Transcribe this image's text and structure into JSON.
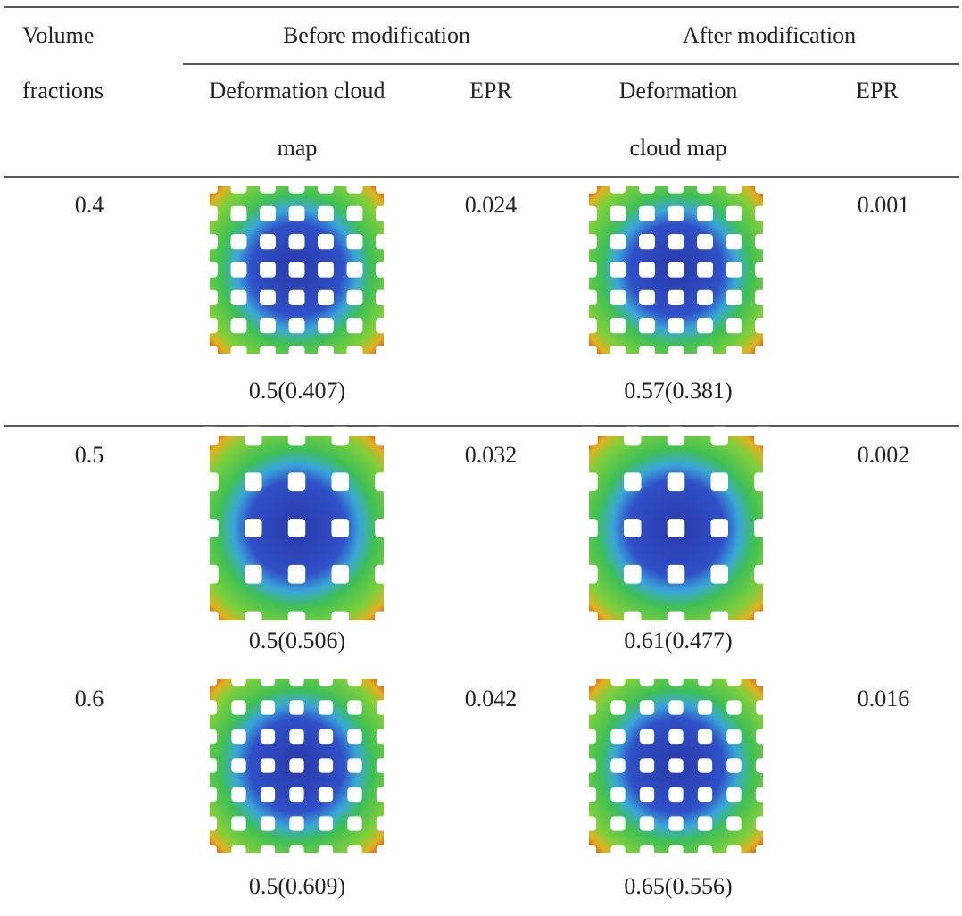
{
  "header": {
    "volume": "Volume",
    "fractions": "fractions",
    "before": "Before modification",
    "after": "After modification",
    "before_map": [
      "Deformation cloud",
      "map"
    ],
    "before_epr": "EPR",
    "after_map": [
      "Deformation",
      "cloud map"
    ],
    "after_epr": "EPR"
  },
  "rows": [
    {
      "fraction": "0.4",
      "before_epr": "0.024",
      "before_caption": "0.5(0.407)",
      "after_epr": "0.001",
      "after_caption": "0.57(0.381)"
    },
    {
      "fraction": "0.5",
      "before_epr": "0.032",
      "before_caption": "0.5(0.506)",
      "after_epr": "0.002",
      "after_caption": "0.61(0.477)"
    },
    {
      "fraction": "0.6",
      "before_epr": "0.042",
      "before_caption": "0.5(0.609)",
      "after_epr": "0.016",
      "after_caption": "0.65(0.556)"
    }
  ]
}
